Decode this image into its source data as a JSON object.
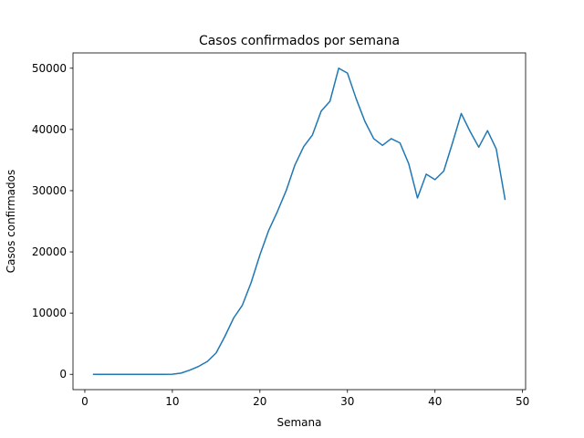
{
  "chart_data": {
    "type": "line",
    "title": "Casos confirmados por semana",
    "xlabel": "Semana",
    "ylabel": "Casos confirmados",
    "xlim": [
      -1.35,
      50.35
    ],
    "ylim": [
      -2500,
      52500
    ],
    "xticks": [
      0,
      10,
      20,
      30,
      40,
      50
    ],
    "yticks": [
      0,
      10000,
      20000,
      30000,
      40000,
      50000
    ],
    "grid": false,
    "color": "#1f77b4",
    "series": [
      {
        "x": [
          1,
          2,
          3,
          4,
          5,
          6,
          7,
          8,
          9,
          10,
          11,
          12,
          13,
          14,
          15,
          16,
          17,
          18,
          19,
          20,
          21,
          22,
          23,
          24,
          25,
          26,
          27,
          28,
          29,
          30,
          31,
          32,
          33,
          34,
          35,
          36,
          37,
          38,
          39,
          40,
          41,
          42,
          43,
          44,
          45,
          46,
          47,
          48
        ],
        "values": [
          0,
          0,
          0,
          0,
          0,
          0,
          0,
          0,
          0,
          20,
          200,
          700,
          1300,
          2100,
          3500,
          6200,
          9200,
          11300,
          15000,
          19500,
          23500,
          26600,
          30000,
          34200,
          37200,
          39100,
          43000,
          44600,
          50000,
          49200,
          45000,
          41300,
          38500,
          37400,
          38500,
          37800,
          34400,
          28800,
          32700,
          31800,
          33200,
          37800,
          42600,
          39700,
          37100,
          39800,
          36800,
          28600
        ]
      }
    ]
  }
}
